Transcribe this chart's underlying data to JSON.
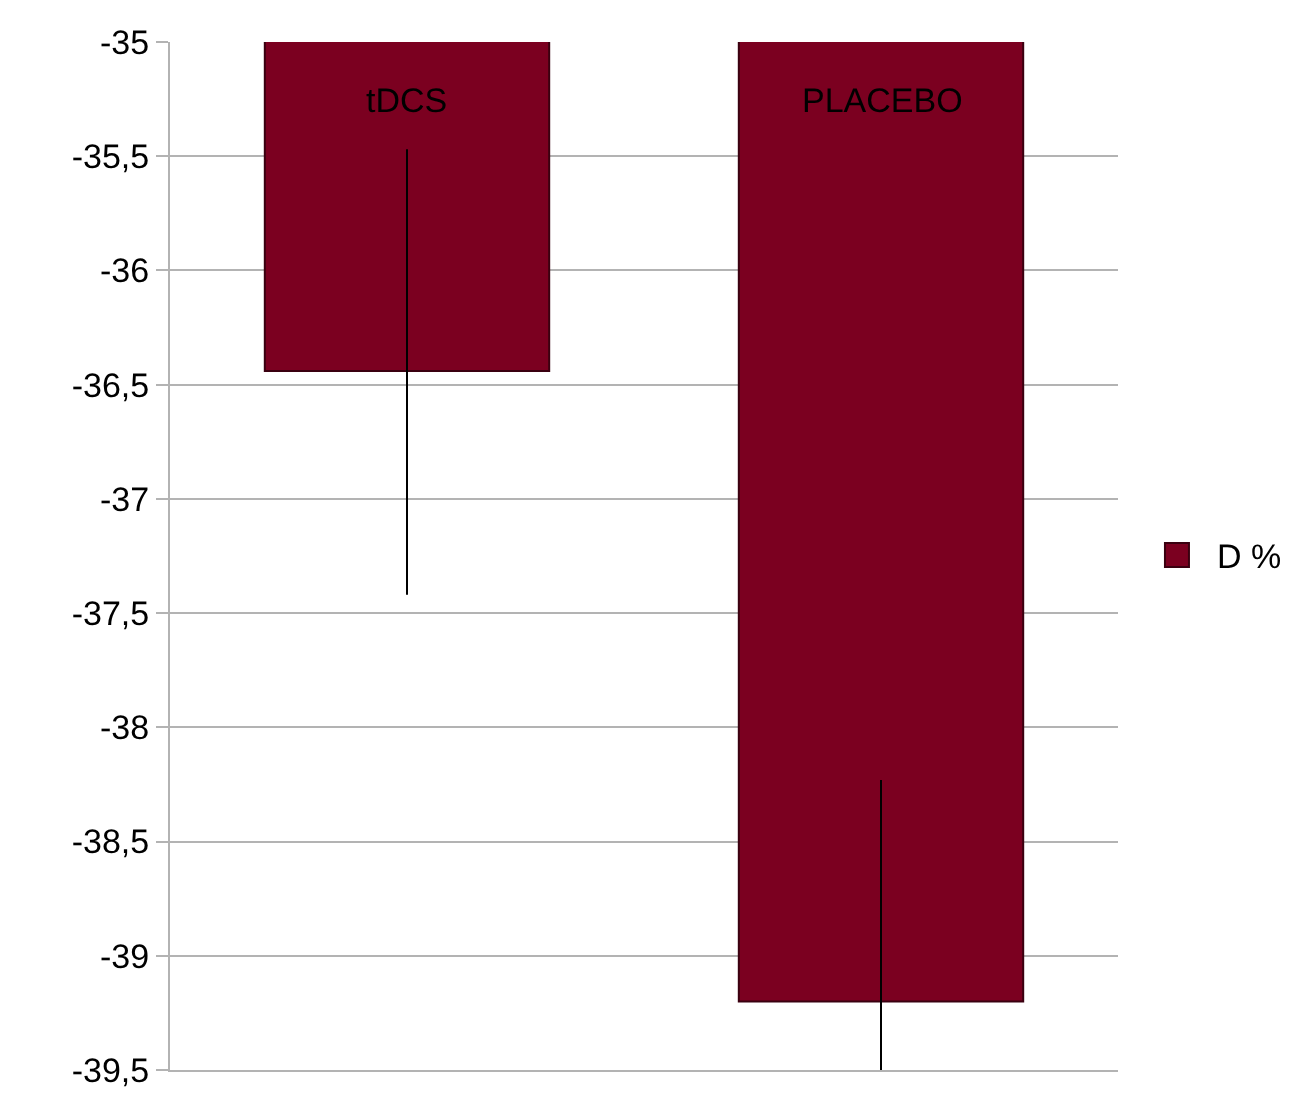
{
  "chart_data": {
    "type": "bar",
    "categories": [
      "tDCS",
      "PLACEBO"
    ],
    "series": [
      {
        "name": "D %",
        "color": "#7b0020",
        "values": [
          -36.44,
          -39.2
        ],
        "errors": [
          [
            -37.42,
            -35.47
          ],
          [
            -39.5,
            -38.23
          ]
        ]
      }
    ],
    "ylim": [
      -39.5,
      -35
    ],
    "yticks": [
      -35,
      {
        "value": -35.5,
        "label": "-35,5"
      },
      -36,
      {
        "value": -36.5,
        "label": "-36,5"
      },
      -37,
      {
        "value": -37.5,
        "label": "-37,5"
      },
      -38,
      {
        "value": -38.5,
        "label": "-38,5"
      },
      -39,
      {
        "value": -39.5,
        "label": "-39,5"
      }
    ],
    "grid": "y",
    "legend": "right",
    "tick_labels": "y"
  }
}
